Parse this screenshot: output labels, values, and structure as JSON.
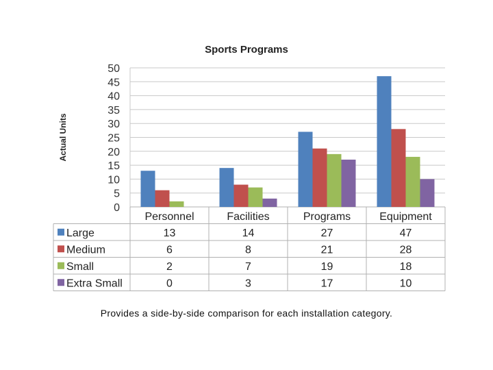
{
  "chart_data": {
    "type": "bar",
    "title": "Sports Programs",
    "xlabel": "",
    "ylabel": "Actual Units",
    "ylim": [
      0,
      50
    ],
    "yticks": [
      0,
      5,
      10,
      15,
      20,
      25,
      30,
      35,
      40,
      45,
      50
    ],
    "categories": [
      "Personnel",
      "Facilities",
      "Programs",
      "Equipment"
    ],
    "series": [
      {
        "name": "Large",
        "color": "#4F81BD",
        "values": [
          13,
          14,
          27,
          47
        ]
      },
      {
        "name": "Medium",
        "color": "#C0504D",
        "values": [
          6,
          8,
          21,
          28
        ]
      },
      {
        "name": "Small",
        "color": "#9BBB59",
        "values": [
          2,
          7,
          19,
          18
        ]
      },
      {
        "name": "Extra Small",
        "color": "#8064A2",
        "values": [
          0,
          3,
          17,
          10
        ]
      }
    ],
    "grid": true,
    "data_table": true
  },
  "caption": "Provides a side-by-side comparison for each installation category."
}
